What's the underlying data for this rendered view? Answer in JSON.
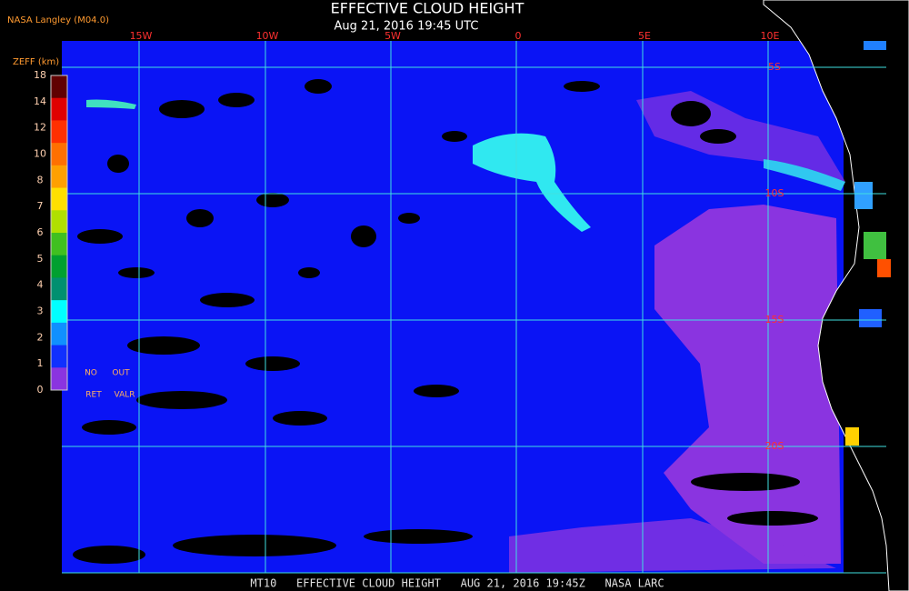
{
  "header": {
    "source": "NASA Langley (M04.0)",
    "title": "EFFECTIVE CLOUD HEIGHT",
    "subtitle": "Aug 21, 2016 19:45 UTC"
  },
  "legend": {
    "title": "ZEFF (km)",
    "ticks": [
      18,
      14,
      12,
      10,
      8,
      7,
      6,
      5,
      4,
      3,
      2,
      1,
      0
    ],
    "notes": [
      "NO",
      "OUT",
      "RET",
      "VALR"
    ]
  },
  "map": {
    "longitude_labels": [
      "15W",
      "10W",
      "5W",
      "0",
      "5E",
      "10E"
    ],
    "latitude_labels": [
      "5S",
      "10S",
      "15S",
      "20S"
    ]
  },
  "footer": "MT10   EFFECTIVE CLOUD HEIGHT   AUG 21, 2016 19:45Z   NASA LARC"
}
